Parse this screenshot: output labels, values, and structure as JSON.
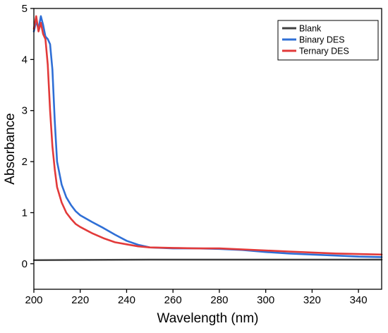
{
  "chart_data": {
    "type": "line",
    "xlabel": "Wavelength (nm)",
    "ylabel": "Absorbance",
    "xlim": [
      200,
      350
    ],
    "ylim": [
      -0.5,
      5
    ],
    "xticks": [
      200,
      220,
      240,
      260,
      280,
      300,
      320,
      340
    ],
    "yticks": [
      0,
      1,
      2,
      3,
      4,
      5
    ],
    "legend_position": "top-right",
    "grid": false,
    "series": [
      {
        "name": "Blank",
        "color": "#404040",
        "x": [
          200,
          250,
          300,
          350
        ],
        "y": [
          0.07,
          0.08,
          0.08,
          0.08
        ]
      },
      {
        "name": "Binary DES",
        "color": "#2f6fd6",
        "x": [
          200,
          201,
          202,
          203,
          204,
          205,
          206,
          207,
          208,
          209,
          210,
          212,
          214,
          216,
          218,
          220,
          225,
          230,
          235,
          240,
          245,
          250,
          260,
          270,
          280,
          290,
          300,
          310,
          320,
          330,
          340,
          350
        ],
        "y": [
          4.55,
          4.75,
          4.6,
          4.85,
          4.68,
          4.45,
          4.4,
          4.3,
          3.8,
          2.8,
          2.0,
          1.55,
          1.3,
          1.15,
          1.03,
          0.95,
          0.82,
          0.7,
          0.57,
          0.45,
          0.37,
          0.32,
          0.3,
          0.3,
          0.29,
          0.27,
          0.23,
          0.2,
          0.18,
          0.16,
          0.14,
          0.13
        ]
      },
      {
        "name": "Ternary DES",
        "color": "#e23a3a",
        "x": [
          200,
          201,
          202,
          203,
          204,
          205,
          206,
          207,
          208,
          209,
          210,
          212,
          214,
          216,
          218,
          220,
          225,
          230,
          235,
          240,
          245,
          250,
          260,
          270,
          280,
          290,
          300,
          310,
          320,
          330,
          340,
          350
        ],
        "y": [
          4.6,
          4.85,
          4.55,
          4.72,
          4.5,
          4.4,
          3.9,
          3.0,
          2.3,
          1.85,
          1.5,
          1.2,
          1.0,
          0.88,
          0.78,
          0.72,
          0.6,
          0.5,
          0.42,
          0.38,
          0.34,
          0.32,
          0.31,
          0.3,
          0.3,
          0.28,
          0.26,
          0.24,
          0.22,
          0.2,
          0.19,
          0.18
        ]
      }
    ]
  }
}
